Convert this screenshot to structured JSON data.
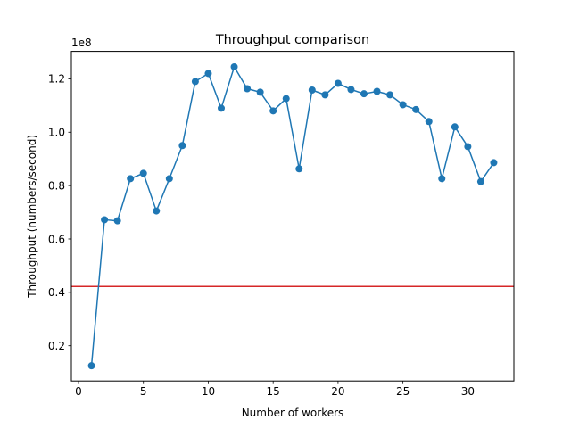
{
  "chart_data": {
    "type": "line",
    "title": "Throughput comparison",
    "xlabel": "Number of workers",
    "ylabel": "Throughput (numbers/second)",
    "y_offset_label": "1e8",
    "y_scale": 100000000,
    "xlim": [
      -0.55,
      33.55
    ],
    "ylim": [
      0.068,
      1.303
    ],
    "xticks": [
      0,
      5,
      10,
      15,
      20,
      25,
      30
    ],
    "yticks": [
      0.2,
      0.4,
      0.6,
      0.8,
      1.0,
      1.2
    ],
    "ytick_labels": [
      "0.2",
      "0.4",
      "0.6",
      "0.8",
      "1.0",
      "1.2"
    ],
    "grid": false,
    "series": [
      {
        "color": "#1f77b4",
        "marker": "circle",
        "x": [
          1,
          2,
          3,
          4,
          5,
          6,
          7,
          8,
          9,
          10,
          11,
          12,
          13,
          14,
          15,
          16,
          17,
          18,
          19,
          20,
          21,
          22,
          23,
          24,
          25,
          26,
          27,
          28,
          29,
          30,
          31,
          32
        ],
        "y": [
          0.125,
          0.672,
          0.668,
          0.826,
          0.846,
          0.705,
          0.826,
          0.95,
          1.19,
          1.22,
          1.09,
          1.245,
          1.163,
          1.15,
          1.08,
          1.126,
          0.863,
          1.158,
          1.14,
          1.183,
          1.16,
          1.144,
          1.153,
          1.14,
          1.103,
          1.085,
          1.04,
          0.826,
          1.02,
          0.946,
          0.815,
          0.886
        ]
      }
    ],
    "hlines": [
      {
        "y": 0.422,
        "color": "#d62728"
      }
    ]
  }
}
